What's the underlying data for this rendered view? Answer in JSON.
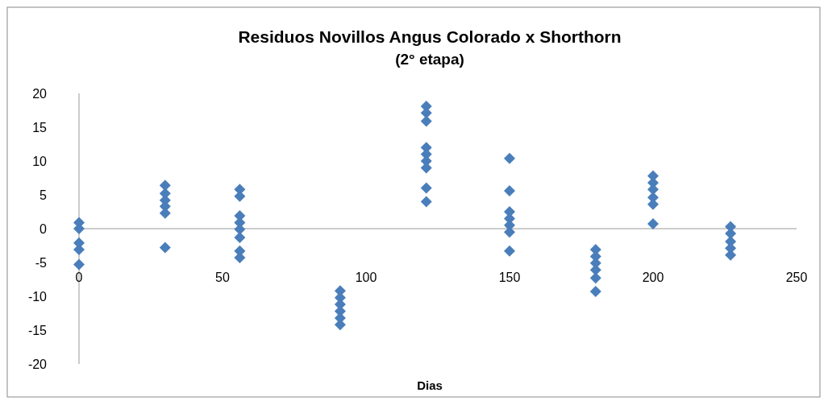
{
  "chart_data": {
    "type": "scatter",
    "title": "Residuos Novillos Angus Colorado x  Shorthorn",
    "subtitle": "(2° etapa)",
    "xlabel": "Dias",
    "marker": "diamond",
    "xlim": [
      0,
      250
    ],
    "xticks": [
      0,
      50,
      100,
      150,
      200,
      250
    ],
    "ylim": [
      -20,
      20
    ],
    "yticks": [
      -20,
      -15,
      -10,
      -5,
      0,
      5,
      10,
      15,
      20
    ],
    "series": [
      {
        "color": "#4a7ebb",
        "x": [
          0,
          0,
          0,
          0,
          0,
          30,
          30,
          30,
          30,
          30,
          30,
          56,
          56,
          56,
          56,
          56,
          56,
          56,
          56,
          91,
          91,
          91,
          91,
          91,
          91,
          121,
          121,
          121,
          121,
          121,
          121,
          121,
          121,
          121,
          150,
          150,
          150,
          150,
          150,
          150,
          150,
          180,
          180,
          180,
          180,
          180,
          180,
          200,
          200,
          200,
          200,
          200,
          200,
          227,
          227,
          227,
          227,
          227
        ],
        "values": [
          0.9,
          0,
          -2.1,
          -3.1,
          -5.3,
          6.4,
          5.2,
          4.2,
          3.3,
          2.3,
          -2.8,
          5.8,
          4.8,
          1.9,
          0.9,
          -0.1,
          -1.3,
          -3.3,
          -4.3,
          -9.2,
          -10.2,
          -11.2,
          -12.2,
          -13.2,
          -14.2,
          18.1,
          17.1,
          15.9,
          12,
          11,
          10,
          9,
          6,
          4,
          10.4,
          5.6,
          2.5,
          1.5,
          0.5,
          -0.5,
          -3.3,
          -3.1,
          -4.1,
          -5.1,
          -6.1,
          -7.3,
          -9.3,
          7.8,
          6.8,
          5.8,
          4.6,
          3.6,
          0.7,
          0.3,
          -0.7,
          -1.9,
          -2.9,
          -3.9
        ]
      }
    ]
  }
}
